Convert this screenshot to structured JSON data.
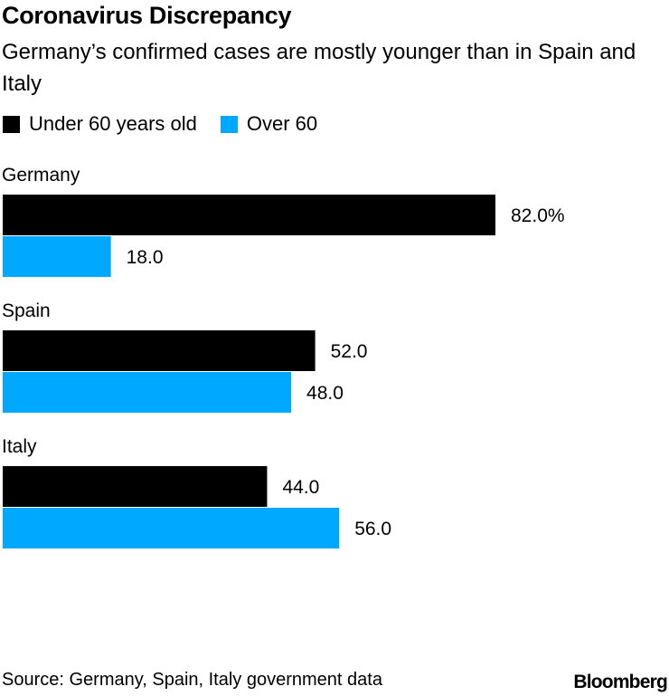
{
  "chart_data": {
    "type": "bar",
    "orientation": "horizontal",
    "title": "Coronavirus Discrepancy",
    "subtitle": "Germany’s confirmed cases are mostly younger than in Spain and Italy",
    "categories": [
      "Germany",
      "Spain",
      "Italy"
    ],
    "series": [
      {
        "name": "Under 60 years old",
        "color": "#000000",
        "values": [
          82.0,
          52.0,
          44.0
        ],
        "labels": [
          "82.0%",
          "52.0",
          "44.0"
        ]
      },
      {
        "name": "Over 60",
        "color": "#00A8FF",
        "values": [
          18.0,
          48.0,
          56.0
        ],
        "labels": [
          "18.0",
          "48.0",
          "56.0"
        ]
      }
    ],
    "xlim": [
      0,
      100
    ],
    "grid": false,
    "legend": "top-left"
  },
  "footer": {
    "source": "Source: Germany, Spain, Italy government data",
    "logo": "Bloomberg"
  }
}
